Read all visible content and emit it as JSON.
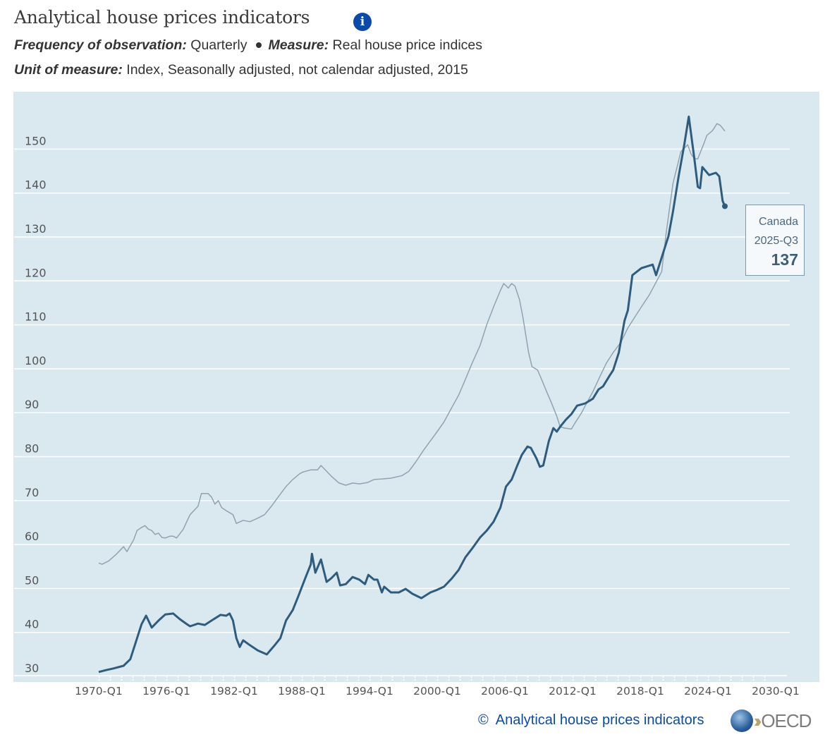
{
  "header": {
    "title": "Analytical house prices indicators",
    "info_icon": "i",
    "frequency_label": "Frequency of observation:",
    "frequency_value": "Quarterly",
    "measure_label": "Measure:",
    "measure_value": "Real house price indices",
    "unit_label": "Unit of measure:",
    "unit_value": "Index, Seasonally adjusted, not calendar adjusted, 2015"
  },
  "tooltip": {
    "country": "Canada",
    "period": "2025-Q3",
    "value": "137"
  },
  "footer": {
    "copyright": "©",
    "source_link": "Analytical house prices indicators",
    "logo_text": "OECD"
  },
  "colors": {
    "plot_bg": "#dae9f0",
    "primary_line": "#2f5b7c",
    "secondary_line": "#8fa3b1",
    "link": "#0b4aa8"
  },
  "chart_data": {
    "type": "line",
    "title": "Analytical house prices indicators",
    "xlabel": "",
    "ylabel": "",
    "ylim": [
      30,
      150
    ],
    "yticks": [
      30,
      40,
      50,
      60,
      70,
      80,
      90,
      100,
      110,
      120,
      130,
      140,
      150
    ],
    "xlim": [
      1970,
      2030
    ],
    "xticks": [
      {
        "year": 1970,
        "label": "1970-Q1"
      },
      {
        "year": 1976,
        "label": "1976-Q1"
      },
      {
        "year": 1982,
        "label": "1982-Q1"
      },
      {
        "year": 1988,
        "label": "1988-Q1"
      },
      {
        "year": 1994,
        "label": "1994-Q1"
      },
      {
        "year": 2000,
        "label": "2000-Q1"
      },
      {
        "year": 2006,
        "label": "2006-Q1"
      },
      {
        "year": 2012,
        "label": "2012-Q1"
      },
      {
        "year": 2018,
        "label": "2018-Q1"
      },
      {
        "year": 2024,
        "label": "2024-Q1"
      },
      {
        "year": 2030,
        "label": "2030-Q1"
      }
    ],
    "grid": true,
    "series": [
      {
        "name": "Canada",
        "highlighted": true,
        "points": [
          [
            1970.0,
            31.0
          ],
          [
            1970.6,
            31.4
          ],
          [
            1971.3,
            31.8
          ],
          [
            1972.2,
            32.4
          ],
          [
            1972.8,
            33.9
          ],
          [
            1973.3,
            37.9
          ],
          [
            1973.8,
            41.9
          ],
          [
            1974.2,
            43.8
          ],
          [
            1974.7,
            41.1
          ],
          [
            1975.3,
            42.7
          ],
          [
            1975.9,
            44.1
          ],
          [
            1976.6,
            44.3
          ],
          [
            1977.2,
            43.0
          ],
          [
            1977.8,
            41.9
          ],
          [
            1978.1,
            41.4
          ],
          [
            1978.8,
            42.0
          ],
          [
            1979.4,
            41.7
          ],
          [
            1980.0,
            42.7
          ],
          [
            1980.8,
            44.0
          ],
          [
            1981.3,
            43.8
          ],
          [
            1981.6,
            44.3
          ],
          [
            1981.9,
            42.7
          ],
          [
            1982.2,
            38.7
          ],
          [
            1982.5,
            36.7
          ],
          [
            1982.8,
            38.2
          ],
          [
            1983.4,
            37.1
          ],
          [
            1984.1,
            35.9
          ],
          [
            1984.9,
            35.0
          ],
          [
            1985.6,
            37.1
          ],
          [
            1986.1,
            38.7
          ],
          [
            1986.6,
            42.7
          ],
          [
            1987.2,
            45.1
          ],
          [
            1987.7,
            48.3
          ],
          [
            1988.3,
            52.3
          ],
          [
            1988.8,
            55.5
          ],
          [
            1988.9,
            57.9
          ],
          [
            1989.2,
            53.6
          ],
          [
            1989.7,
            56.6
          ],
          [
            1990.2,
            51.5
          ],
          [
            1990.6,
            52.3
          ],
          [
            1991.1,
            53.6
          ],
          [
            1991.4,
            50.7
          ],
          [
            1991.9,
            51.0
          ],
          [
            1992.5,
            52.6
          ],
          [
            1993.1,
            52.0
          ],
          [
            1993.6,
            51.0
          ],
          [
            1993.9,
            53.1
          ],
          [
            1994.4,
            52.0
          ],
          [
            1994.7,
            52.0
          ],
          [
            1995.1,
            49.1
          ],
          [
            1995.3,
            50.4
          ],
          [
            1995.9,
            49.1
          ],
          [
            1996.6,
            49.1
          ],
          [
            1997.2,
            49.9
          ],
          [
            1997.8,
            48.8
          ],
          [
            1998.6,
            47.8
          ],
          [
            1999.4,
            49.1
          ],
          [
            2000.0,
            49.7
          ],
          [
            2000.6,
            50.4
          ],
          [
            2001.3,
            52.3
          ],
          [
            2001.9,
            54.2
          ],
          [
            2002.5,
            57.1
          ],
          [
            2003.1,
            59.1
          ],
          [
            2003.8,
            61.6
          ],
          [
            2004.4,
            63.2
          ],
          [
            2005.0,
            65.2
          ],
          [
            2005.6,
            68.4
          ],
          [
            2006.1,
            73.2
          ],
          [
            2006.6,
            74.8
          ],
          [
            2007.1,
            78.0
          ],
          [
            2007.5,
            80.4
          ],
          [
            2008.0,
            82.3
          ],
          [
            2008.3,
            82.0
          ],
          [
            2008.8,
            79.6
          ],
          [
            2009.1,
            77.7
          ],
          [
            2009.4,
            78.0
          ],
          [
            2009.9,
            83.6
          ],
          [
            2010.3,
            86.5
          ],
          [
            2010.6,
            85.7
          ],
          [
            2010.9,
            86.8
          ],
          [
            2011.4,
            88.4
          ],
          [
            2011.9,
            89.7
          ],
          [
            2012.4,
            91.6
          ],
          [
            2013.1,
            92.1
          ],
          [
            2013.8,
            93.2
          ],
          [
            2014.3,
            95.3
          ],
          [
            2014.7,
            96.0
          ],
          [
            2015.3,
            98.5
          ],
          [
            2015.6,
            99.7
          ],
          [
            2016.1,
            103.7
          ],
          [
            2016.6,
            110.9
          ],
          [
            2016.9,
            113.3
          ],
          [
            2017.3,
            121.3
          ],
          [
            2018.1,
            122.9
          ],
          [
            2019.1,
            123.7
          ],
          [
            2019.4,
            121.3
          ],
          [
            2020.5,
            130.2
          ],
          [
            2020.9,
            135.8
          ],
          [
            2021.4,
            143.8
          ],
          [
            2021.9,
            151.0
          ],
          [
            2022.3,
            157.4
          ],
          [
            2022.8,
            147.7
          ],
          [
            2023.1,
            141.4
          ],
          [
            2023.3,
            141.1
          ],
          [
            2023.5,
            145.9
          ],
          [
            2024.1,
            144.1
          ],
          [
            2024.7,
            144.6
          ],
          [
            2025.0,
            143.8
          ],
          [
            2025.3,
            138.2
          ],
          [
            2025.5,
            137.0
          ]
        ]
      },
      {
        "name": "",
        "highlighted": false,
        "points": [
          [
            1970.0,
            55.8
          ],
          [
            1970.3,
            55.5
          ],
          [
            1970.9,
            56.3
          ],
          [
            1971.6,
            57.9
          ],
          [
            1971.9,
            58.7
          ],
          [
            1972.2,
            59.5
          ],
          [
            1972.5,
            58.4
          ],
          [
            1973.1,
            61.1
          ],
          [
            1973.4,
            63.2
          ],
          [
            1973.8,
            63.9
          ],
          [
            1974.1,
            64.3
          ],
          [
            1974.4,
            63.5
          ],
          [
            1974.7,
            63.2
          ],
          [
            1975.0,
            62.3
          ],
          [
            1975.3,
            62.6
          ],
          [
            1975.6,
            61.6
          ],
          [
            1975.9,
            61.5
          ],
          [
            1976.3,
            61.9
          ],
          [
            1976.6,
            61.9
          ],
          [
            1976.9,
            61.5
          ],
          [
            1977.5,
            63.5
          ],
          [
            1977.8,
            65.2
          ],
          [
            1978.1,
            66.8
          ],
          [
            1978.8,
            68.7
          ],
          [
            1979.1,
            71.6
          ],
          [
            1979.7,
            71.6
          ],
          [
            1980.0,
            70.8
          ],
          [
            1980.3,
            69.2
          ],
          [
            1980.6,
            70.0
          ],
          [
            1980.9,
            68.4
          ],
          [
            1981.3,
            67.7
          ],
          [
            1981.9,
            66.8
          ],
          [
            1982.2,
            64.8
          ],
          [
            1982.8,
            65.5
          ],
          [
            1983.4,
            65.2
          ],
          [
            1984.1,
            66.0
          ],
          [
            1984.7,
            66.8
          ],
          [
            1985.3,
            68.7
          ],
          [
            1985.9,
            70.8
          ],
          [
            1986.6,
            73.2
          ],
          [
            1987.2,
            74.8
          ],
          [
            1987.8,
            76.1
          ],
          [
            1988.1,
            76.5
          ],
          [
            1988.8,
            77.0
          ],
          [
            1989.4,
            77.0
          ],
          [
            1989.7,
            78.0
          ],
          [
            1990.0,
            77.2
          ],
          [
            1990.6,
            75.6
          ],
          [
            1991.3,
            74.0
          ],
          [
            1991.9,
            73.5
          ],
          [
            1992.5,
            74.0
          ],
          [
            1993.1,
            73.8
          ],
          [
            1993.8,
            74.1
          ],
          [
            1994.4,
            74.8
          ],
          [
            1995.0,
            74.9
          ],
          [
            1995.9,
            75.1
          ],
          [
            1996.9,
            75.7
          ],
          [
            1997.5,
            76.7
          ],
          [
            1998.1,
            78.8
          ],
          [
            1998.8,
            81.5
          ],
          [
            1999.4,
            83.6
          ],
          [
            2000.0,
            85.7
          ],
          [
            2000.6,
            87.9
          ],
          [
            2001.3,
            91.2
          ],
          [
            2001.9,
            94.0
          ],
          [
            2002.5,
            97.6
          ],
          [
            2003.1,
            101.3
          ],
          [
            2003.8,
            105.3
          ],
          [
            2004.4,
            110.1
          ],
          [
            2005.0,
            114.1
          ],
          [
            2005.6,
            117.8
          ],
          [
            2005.9,
            119.4
          ],
          [
            2006.3,
            118.4
          ],
          [
            2006.6,
            119.4
          ],
          [
            2006.9,
            118.8
          ],
          [
            2007.3,
            115.7
          ],
          [
            2007.6,
            111.7
          ],
          [
            2008.1,
            103.7
          ],
          [
            2008.4,
            100.5
          ],
          [
            2008.9,
            99.7
          ],
          [
            2009.3,
            97.3
          ],
          [
            2009.7,
            94.8
          ],
          [
            2010.1,
            92.4
          ],
          [
            2010.6,
            89.2
          ],
          [
            2010.9,
            86.8
          ],
          [
            2011.3,
            86.5
          ],
          [
            2011.9,
            86.3
          ],
          [
            2012.2,
            87.6
          ],
          [
            2012.8,
            90.0
          ],
          [
            2013.3,
            92.4
          ],
          [
            2013.8,
            94.8
          ],
          [
            2014.4,
            98.1
          ],
          [
            2015.0,
            101.3
          ],
          [
            2015.6,
            103.7
          ],
          [
            2016.3,
            106.1
          ],
          [
            2016.9,
            109.3
          ],
          [
            2017.5,
            111.7
          ],
          [
            2018.1,
            114.1
          ],
          [
            2018.8,
            116.8
          ],
          [
            2019.4,
            119.7
          ],
          [
            2019.9,
            122.1
          ],
          [
            2020.3,
            131.0
          ],
          [
            2020.9,
            142.2
          ],
          [
            2021.6,
            149.4
          ],
          [
            2022.2,
            151.0
          ],
          [
            2022.5,
            148.9
          ],
          [
            2022.8,
            147.8
          ],
          [
            2023.1,
            147.8
          ],
          [
            2023.6,
            151.0
          ],
          [
            2023.9,
            153.1
          ],
          [
            2024.4,
            154.2
          ],
          [
            2024.8,
            155.8
          ],
          [
            2025.1,
            155.4
          ],
          [
            2025.5,
            154.1
          ]
        ]
      }
    ]
  }
}
